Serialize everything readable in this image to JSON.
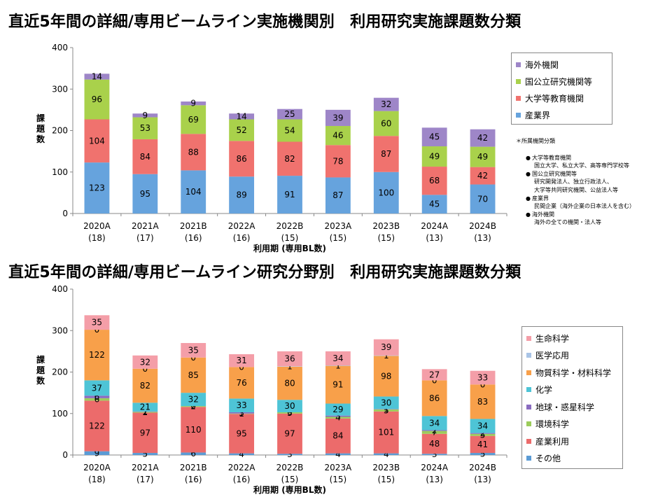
{
  "page_titles": [
    "直近5年間の詳細/専用ビームライン実施機関別　利用研究実施課題数分類",
    "直近5年間の詳細/専用ビームライン研究分野別　利用研究実施課題数分類"
  ],
  "legend_swatch_colors": {
    "org": [
      "#9e86c8",
      "#a9d14b",
      "#f0726e",
      "#66a3dd"
    ],
    "field": [
      "#f49ea8",
      "#a9c4e6",
      "#f8a04a",
      "#4ec4d6",
      "#8a6cc0",
      "#9ccc5b",
      "#ec6b6b",
      "#5b9bd5"
    ]
  },
  "notes": {
    "heading": "＊所属機関分類",
    "categories": [
      {
        "name": "大学等教育機関",
        "desc": [
          "国立大学、私立大学、高等専門学校等"
        ]
      },
      {
        "name": "国公立研究機関等",
        "desc": [
          "研究開発法人、独立行政法人、",
          "大学等共同研究機関、公益法人等"
        ]
      },
      {
        "name": "産業界",
        "desc": [
          "民間企業（海外企業の日本法人を含む）"
        ]
      },
      {
        "name": "海外機関",
        "desc": [
          "海外の全ての機関・法人等"
        ]
      }
    ]
  },
  "chart_data": [
    {
      "type": "bar",
      "stacked": true,
      "title": "",
      "xlabel": "利用期 (専用BL数)",
      "ylabel": "課題数",
      "ylim": [
        0,
        400
      ],
      "yticks": [
        0,
        100,
        200,
        300,
        400
      ],
      "categories": [
        "2020A",
        "2021A",
        "2021B",
        "2022A",
        "2022B",
        "2023A",
        "2023B",
        "2024A",
        "2024B"
      ],
      "category_sublabels": [
        "(18)",
        "(17)",
        "(16)",
        "(16)",
        "(15)",
        "(15)",
        "(15)",
        "(13)",
        "(13)"
      ],
      "series": [
        {
          "name": "産業界",
          "color": "#66a3dd",
          "values": [
            123,
            95,
            104,
            89,
            91,
            87,
            100,
            45,
            70
          ]
        },
        {
          "name": "大学等教育機関",
          "color": "#f0726e",
          "values": [
            104,
            84,
            88,
            86,
            82,
            78,
            87,
            68,
            42
          ]
        },
        {
          "name": "国公立研究機関等",
          "color": "#a9d14b",
          "values": [
            96,
            53,
            69,
            52,
            54,
            46,
            60,
            49,
            49
          ]
        },
        {
          "name": "海外機関",
          "color": "#9e86c8",
          "values": [
            14,
            9,
            9,
            14,
            25,
            39,
            32,
            45,
            42
          ]
        }
      ],
      "legend": [
        "海外機関",
        "国公立研究機関等",
        "大学等教育機関",
        "産業界"
      ],
      "legend_position": "right",
      "grid": false
    },
    {
      "type": "bar",
      "stacked": true,
      "title": "",
      "xlabel": "利用期 (専用BL数)",
      "ylabel": "課題数",
      "ylim": [
        0,
        400
      ],
      "yticks": [
        0,
        100,
        200,
        300,
        400
      ],
      "categories": [
        "2020A",
        "2021A",
        "2021B",
        "2022A",
        "2022B",
        "2023A",
        "2023B",
        "2024A",
        "2024B"
      ],
      "category_sublabels": [
        "(18)",
        "(17)",
        "(16)",
        "(16)",
        "(15)",
        "(15)",
        "(15)",
        "(13)",
        "(13)"
      ],
      "series": [
        {
          "name": "その他",
          "color": "#5b9bd5",
          "values": [
            9,
            5,
            6,
            4,
            3,
            4,
            4,
            3,
            5
          ]
        },
        {
          "name": "産業利用",
          "color": "#ec6b6b",
          "values": [
            122,
            97,
            110,
            95,
            97,
            84,
            101,
            48,
            41
          ]
        },
        {
          "name": "環境科学",
          "color": "#9ccc5b",
          "values": [
            6,
            2,
            2,
            1,
            3,
            4,
            5,
            7,
            5
          ]
        },
        {
          "name": "地球・惑星科学",
          "color": "#8a6cc0",
          "values": [
            6,
            1,
            0,
            3,
            0,
            3,
            1,
            2,
            2
          ]
        },
        {
          "name": "化学",
          "color": "#4ec4d6",
          "values": [
            37,
            21,
            32,
            33,
            30,
            29,
            30,
            34,
            34
          ]
        },
        {
          "name": "物質科学・材料科学",
          "color": "#f8a04a",
          "values": [
            122,
            82,
            85,
            76,
            80,
            91,
            98,
            86,
            83
          ]
        },
        {
          "name": "医学応用",
          "color": "#a9c4e6",
          "values": [
            0,
            0,
            0,
            0,
            1,
            1,
            1,
            0,
            0
          ]
        },
        {
          "name": "生命科学",
          "color": "#f49ea8",
          "values": [
            35,
            32,
            35,
            31,
            36,
            34,
            39,
            27,
            33
          ]
        }
      ],
      "legend": [
        "生命科学",
        "医学応用",
        "物質科学・材料科学",
        "化学",
        "地球・惑星科学",
        "環境科学",
        "産業利用",
        "その他"
      ],
      "legend_position": "right",
      "grid": false
    }
  ]
}
